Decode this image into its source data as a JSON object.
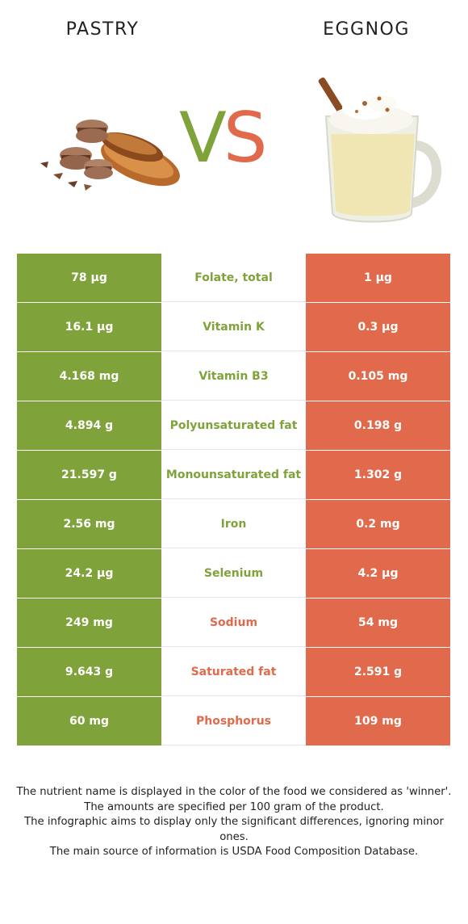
{
  "header": {
    "left_food": "PASTRY",
    "right_food": "EGGNOG",
    "vs_v": "V",
    "vs_s": "S"
  },
  "colors": {
    "pastry": "#7fa33a",
    "eggnog": "#e06a4b"
  },
  "illustrations": {
    "left": "pastry-illustration",
    "right": "eggnog-mug-illustration"
  },
  "rows": [
    {
      "nutrient": "Folate, total",
      "pastry": "78 µg",
      "eggnog": "1 µg",
      "winner": "pastry"
    },
    {
      "nutrient": "Vitamin K",
      "pastry": "16.1 µg",
      "eggnog": "0.3 µg",
      "winner": "pastry"
    },
    {
      "nutrient": "Vitamin B3",
      "pastry": "4.168 mg",
      "eggnog": "0.105 mg",
      "winner": "pastry"
    },
    {
      "nutrient": "Polyunsaturated fat",
      "pastry": "4.894 g",
      "eggnog": "0.198 g",
      "winner": "pastry"
    },
    {
      "nutrient": "Monounsaturated fat",
      "pastry": "21.597 g",
      "eggnog": "1.302 g",
      "winner": "pastry"
    },
    {
      "nutrient": "Iron",
      "pastry": "2.56 mg",
      "eggnog": "0.2 mg",
      "winner": "pastry"
    },
    {
      "nutrient": "Selenium",
      "pastry": "24.2 µg",
      "eggnog": "4.2 µg",
      "winner": "pastry"
    },
    {
      "nutrient": "Sodium",
      "pastry": "249 mg",
      "eggnog": "54 mg",
      "winner": "eggnog"
    },
    {
      "nutrient": "Saturated fat",
      "pastry": "9.643 g",
      "eggnog": "2.591 g",
      "winner": "eggnog"
    },
    {
      "nutrient": "Phosphorus",
      "pastry": "60 mg",
      "eggnog": "109 mg",
      "winner": "eggnog"
    }
  ],
  "footer": {
    "line1": "The nutrient name is displayed in the color of the food we considered as 'winner'.",
    "line2": "The amounts are specified per 100 gram of the product.",
    "line3": "The infographic aims to display only the significant differences, ignoring minor ones.",
    "line4": "The main source of information is USDA Food Composition Database."
  }
}
